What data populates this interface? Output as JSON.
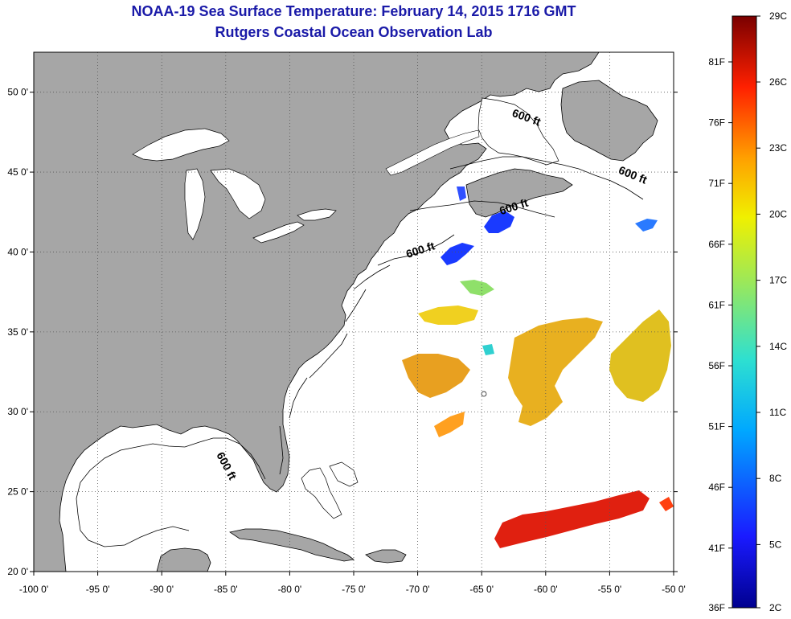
{
  "header": {
    "title": "NOAA-19 Sea Surface Temperature:  February 14, 2015 1716 GMT",
    "subtitle": "Rutgers Coastal Ocean Observation Lab"
  },
  "map": {
    "lon_range": [
      -100,
      -50
    ],
    "lat_range": [
      20,
      52.5
    ],
    "lon_ticks": [
      {
        "value": -100,
        "label": "-100 0'"
      },
      {
        "value": -95,
        "label": "-95 0'"
      },
      {
        "value": -90,
        "label": "-90 0'"
      },
      {
        "value": -85,
        "label": "-85 0'"
      },
      {
        "value": -80,
        "label": "-80 0'"
      },
      {
        "value": -75,
        "label": "-75 0'"
      },
      {
        "value": -70,
        "label": "-70 0'"
      },
      {
        "value": -65,
        "label": "-65 0'"
      },
      {
        "value": -60,
        "label": "-60 0'"
      },
      {
        "value": -55,
        "label": "-55 0'"
      },
      {
        "value": -50,
        "label": "-50 0'"
      }
    ],
    "lat_ticks": [
      {
        "value": 20,
        "label": "20 0'"
      },
      {
        "value": 25,
        "label": "25 0'"
      },
      {
        "value": 30,
        "label": "30 0'"
      },
      {
        "value": 35,
        "label": "35 0'"
      },
      {
        "value": 40,
        "label": "40 0'"
      },
      {
        "value": 45,
        "label": "45 0'"
      },
      {
        "value": 50,
        "label": "50 0'"
      }
    ],
    "grid": "dotted",
    "land_color": "#a6a6a6",
    "ocean_color": "#ffffff",
    "contour_labels": [
      {
        "text": "600 ft",
        "lon": -61.6,
        "lat": 48.2,
        "rotate": 20
      },
      {
        "text": "600 ft",
        "lon": -53.3,
        "lat": 44.6,
        "rotate": 22
      },
      {
        "text": "600 ft",
        "lon": -62.4,
        "lat": 42.6,
        "rotate": -18
      },
      {
        "text": "600 ft",
        "lon": -69.7,
        "lat": 39.9,
        "rotate": -18
      },
      {
        "text": "600 ft",
        "lon": -85.2,
        "lat": 26.5,
        "rotate": 62
      }
    ]
  },
  "colorbar": {
    "celsius_labels": [
      "29C",
      "26C",
      "23C",
      "20C",
      "17C",
      "14C",
      "11C",
      "8C",
      "5C",
      "2C"
    ],
    "fahrenheit_labels": [
      "81F",
      "76F",
      "71F",
      "66F",
      "61F",
      "56F",
      "51F",
      "46F",
      "41F",
      "36F"
    ],
    "colors": [
      "#7a0000",
      "#e00000",
      "#ff6a00",
      "#ffc000",
      "#f0f000",
      "#9be85a",
      "#2ee0d0",
      "#00a8ff",
      "#1a4aff",
      "#00008f"
    ]
  }
}
